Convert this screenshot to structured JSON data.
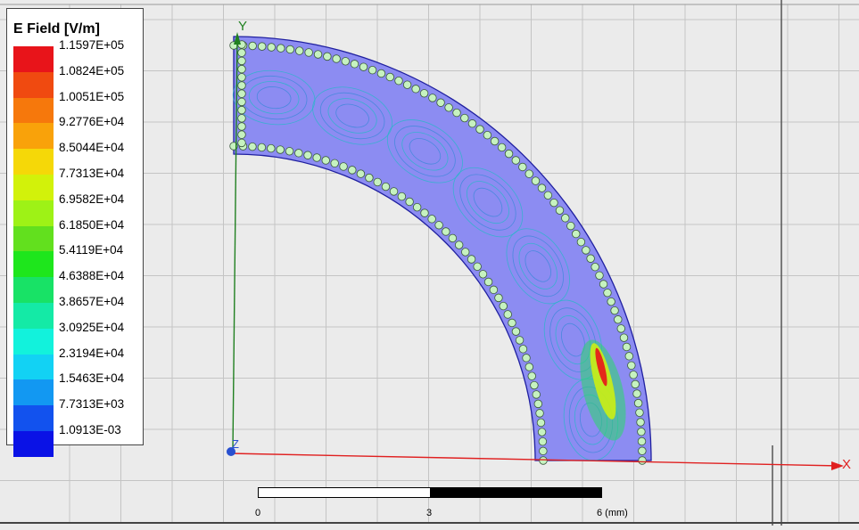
{
  "legend": {
    "title": "E Field [V/m]",
    "levels": [
      {
        "label": "1.1597E+05",
        "color": "#e8141a"
      },
      {
        "label": "1.0824E+05",
        "color": "#f04a10"
      },
      {
        "label": "1.0051E+05",
        "color": "#f6780c"
      },
      {
        "label": "9.2776E+04",
        "color": "#f9a20a"
      },
      {
        "label": "8.5044E+04",
        "color": "#f5d808"
      },
      {
        "label": "7.7313E+04",
        "color": "#d2f20a"
      },
      {
        "label": "6.9582E+04",
        "color": "#9ef216"
      },
      {
        "label": "6.1850E+04",
        "color": "#62e01e"
      },
      {
        "label": "5.4119E+04",
        "color": "#1ee61c"
      },
      {
        "label": "4.6388E+04",
        "color": "#18e266"
      },
      {
        "label": "3.8657E+04",
        "color": "#14eaa6"
      },
      {
        "label": "3.0925E+04",
        "color": "#12f2dc"
      },
      {
        "label": "2.3194E+04",
        "color": "#12d2f4"
      },
      {
        "label": "1.5463E+04",
        "color": "#1298f2"
      },
      {
        "label": "7.7313E+03",
        "color": "#1252ee"
      },
      {
        "label": "1.0913E-03",
        "color": "#0a12e6"
      }
    ]
  },
  "axes": {
    "x_label": "X",
    "y_label": "Y",
    "z_label": "Z"
  },
  "scale_bar": {
    "labels": [
      "0",
      "3",
      "6 (mm)"
    ]
  },
  "colors": {
    "structure_fill": "#8c8cf2",
    "structure_edge": "#2020a0",
    "via_fill": "#c6f2c0",
    "x_axis": "#e02020",
    "y_axis": "#208020",
    "grid": "#c4c4c4",
    "background": "#ebebeb"
  }
}
